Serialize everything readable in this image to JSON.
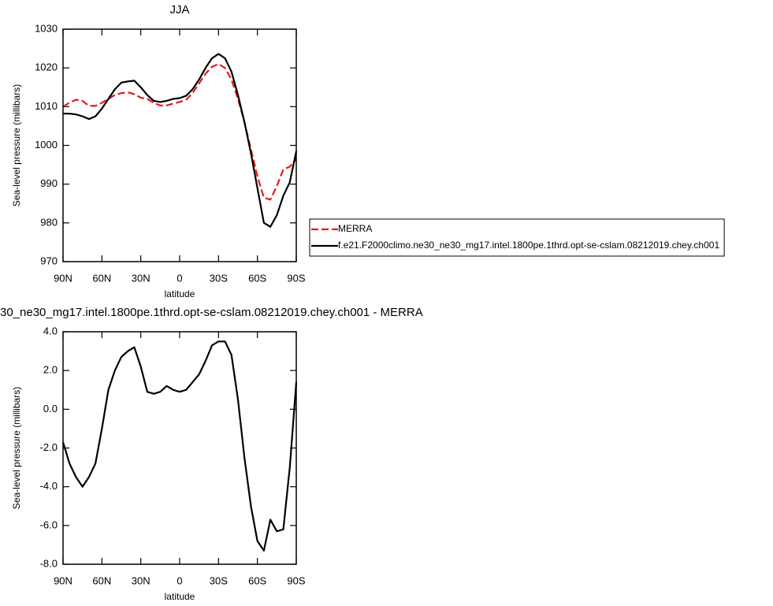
{
  "chart_data": [
    {
      "type": "line",
      "title": "JJA",
      "x_label": "latitude",
      "y_label": "Sea-level pressure (millibars)",
      "x": [
        90,
        85,
        80,
        75,
        70,
        65,
        60,
        55,
        50,
        45,
        40,
        35,
        30,
        25,
        20,
        15,
        10,
        5,
        0,
        -5,
        -10,
        -15,
        -20,
        -25,
        -30,
        -35,
        -40,
        -45,
        -50,
        -55,
        -60,
        -65,
        -70,
        -75,
        -80,
        -85,
        -90
      ],
      "xlim": [
        90,
        -90
      ],
      "xticks": [
        {
          "value": 90,
          "label": "90N"
        },
        {
          "value": 60,
          "label": "60N"
        },
        {
          "value": 30,
          "label": "30N"
        },
        0,
        {
          "value": -30,
          "label": "30S"
        },
        {
          "value": -60,
          "label": "60S"
        },
        {
          "value": -90,
          "label": "90S"
        }
      ],
      "ylim": [
        970,
        1030
      ],
      "yticks": [
        970,
        980,
        990,
        1000,
        1010,
        1020,
        1030
      ],
      "legend": "right",
      "series": [
        {
          "name": "MERRA",
          "color": "#e41a1c",
          "dashed": true,
          "values": [
            1010,
            1011,
            1011.8,
            1011.5,
            1010.2,
            1010.2,
            1011,
            1012,
            1013,
            1013.5,
            1013.7,
            1013.2,
            1012.3,
            1012,
            1011,
            1010.3,
            1010.3,
            1010.8,
            1011.2,
            1011.8,
            1013.5,
            1016,
            1018.5,
            1020.3,
            1021,
            1020,
            1017,
            1012,
            1006,
            999,
            992,
            986.5,
            986,
            989.5,
            993.8,
            994.5,
            996.5
          ]
        },
        {
          "name": "f.e21.F2000climo.ne30_ne30_mg17.intel.1800pe.1thrd.opt-se-cslam.08212019.chey.ch001",
          "color": "#000000",
          "dashed": false,
          "values": [
            1008.2,
            1008.2,
            1008,
            1007.5,
            1006.8,
            1007.5,
            1009.5,
            1012,
            1014.5,
            1016.2,
            1016.5,
            1016.7,
            1015,
            1013,
            1011.5,
            1011.2,
            1011.5,
            1012,
            1012.2,
            1012.8,
            1014.5,
            1017,
            1020,
            1022.5,
            1023.6,
            1022.5,
            1019,
            1013,
            1006,
            998,
            989,
            980,
            979,
            982,
            987,
            990.5,
            998.5
          ]
        }
      ]
    },
    {
      "type": "line",
      "title": "30_ne30_mg17.intel.1800pe.1thrd.opt-se-cslam.08212019.chey.ch001 - MERRA",
      "x_label": "latitude",
      "y_label": "Sea-level pressure (millibars)",
      "x": [
        90,
        85,
        80,
        75,
        70,
        65,
        60,
        55,
        50,
        45,
        40,
        35,
        30,
        25,
        20,
        15,
        10,
        5,
        0,
        -5,
        -10,
        -15,
        -20,
        -25,
        -30,
        -35,
        -40,
        -45,
        -50,
        -55,
        -60,
        -65,
        -70,
        -75,
        -80,
        -85,
        -90
      ],
      "xlim": [
        90,
        -90
      ],
      "xticks": [
        {
          "value": 90,
          "label": "90N"
        },
        {
          "value": 60,
          "label": "60N"
        },
        {
          "value": 30,
          "label": "30N"
        },
        0,
        {
          "value": -30,
          "label": "30S"
        },
        {
          "value": -60,
          "label": "60S"
        },
        {
          "value": -90,
          "label": "90S"
        }
      ],
      "ylim": [
        -8,
        4
      ],
      "yticks": [
        {
          "value": -8,
          "label": "-8.0"
        },
        {
          "value": -6,
          "label": "-6.0"
        },
        {
          "value": -4,
          "label": "-4.0"
        },
        {
          "value": -2,
          "label": "-2.0"
        },
        {
          "value": 0,
          "label": "0.0"
        },
        {
          "value": 2,
          "label": "2.0"
        },
        {
          "value": 4,
          "label": "4.0"
        }
      ],
      "series": [
        {
          "color": "#000000",
          "dashed": false,
          "values": [
            -1.7,
            -2.8,
            -3.5,
            -4.0,
            -3.5,
            -2.8,
            -1.0,
            1.0,
            2.0,
            2.7,
            3.0,
            3.2,
            2.2,
            0.9,
            0.8,
            0.9,
            1.2,
            1.0,
            0.9,
            1.0,
            1.4,
            1.8,
            2.5,
            3.3,
            3.5,
            3.5,
            2.8,
            0.5,
            -2.5,
            -5.0,
            -6.8,
            -7.3,
            -5.7,
            -6.3,
            -6.2,
            -3.0,
            1.4
          ]
        }
      ]
    }
  ]
}
